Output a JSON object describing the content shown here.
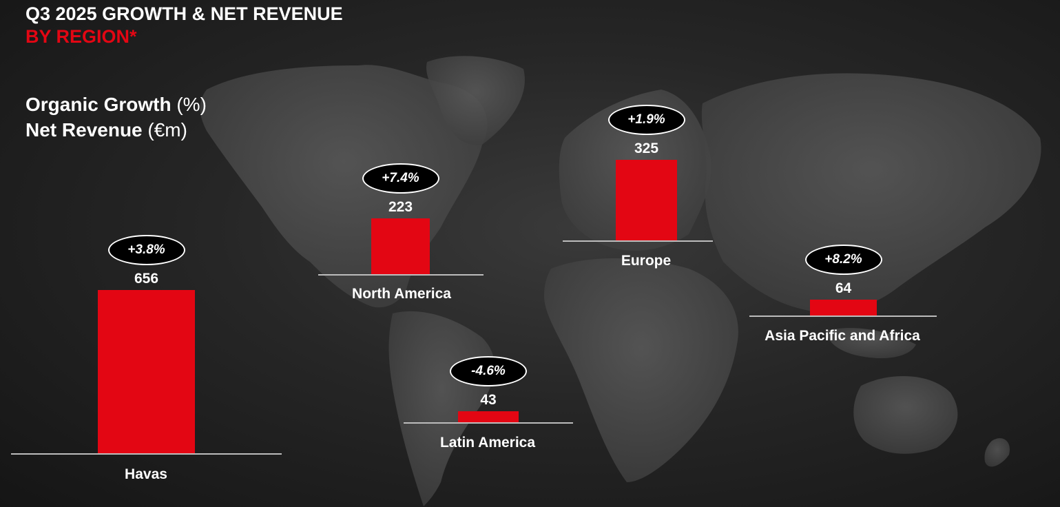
{
  "header": {
    "title_line1": "Q3 2025 GROWTH & NET REVENUE",
    "title_line2": "BY REGION*"
  },
  "legend": {
    "growth_label_bold": "Organic Growth",
    "growth_unit": " (%)",
    "revenue_label_bold": "Net Revenue",
    "revenue_unit": " (€m)"
  },
  "colors": {
    "bar": "#e30613",
    "title_accent": "#e30613",
    "text": "#ffffff",
    "background": "#1e1e1e"
  },
  "chart_data": {
    "type": "bar",
    "title": "Q3 2025 GROWTH & NET REVENUE BY REGION*",
    "categories": [
      "Havas",
      "North America",
      "Europe",
      "Latin America",
      "Asia Pacific and Africa"
    ],
    "series": [
      {
        "name": "Net Revenue (€m)",
        "values": [
          656,
          223,
          325,
          43,
          64
        ]
      },
      {
        "name": "Organic Growth (%)",
        "values": [
          3.8,
          7.4,
          1.9,
          -4.6,
          8.2
        ]
      }
    ],
    "value_labels": [
      "656",
      "223",
      "325",
      "43",
      "64"
    ],
    "growth_labels": [
      "+3.8%",
      "+7.4%",
      "+1.9%",
      "-4.6%",
      "+8.2%"
    ],
    "background": "world map"
  }
}
